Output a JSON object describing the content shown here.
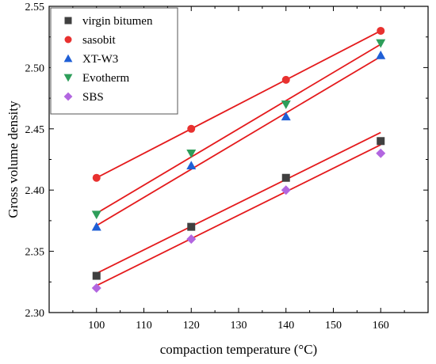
{
  "chart_data": {
    "type": "scatter",
    "title": "",
    "xlabel": "compaction temperature (°C)",
    "ylabel": "Gross volume density",
    "xlim": [
      90,
      170
    ],
    "ylim": [
      2.3,
      2.55
    ],
    "x_ticks": [
      "100",
      "110",
      "120",
      "130",
      "140",
      "150",
      "160"
    ],
    "y_ticks": [
      "2.30",
      "2.35",
      "2.40",
      "2.45",
      "2.50",
      "2.55"
    ],
    "legend_position": "top-left",
    "grid": false,
    "x": [
      100,
      120,
      140,
      160
    ],
    "series": [
      {
        "name": "virgin bitumen",
        "values": [
          2.33,
          2.37,
          2.41,
          2.44
        ],
        "marker": "square",
        "color": "#404040",
        "fit": [
          2.332,
          2.447
        ]
      },
      {
        "name": "sasobit",
        "values": [
          2.41,
          2.45,
          2.49,
          2.53
        ],
        "marker": "circle",
        "color": "#e8312f",
        "fit": [
          2.41,
          2.53
        ]
      },
      {
        "name": "XT-W3",
        "values": [
          2.37,
          2.42,
          2.46,
          2.51
        ],
        "marker": "triangle-up",
        "color": "#1f5fd6",
        "fit": [
          2.371,
          2.509
        ]
      },
      {
        "name": "Evotherm",
        "values": [
          2.38,
          2.43,
          2.47,
          2.52
        ],
        "marker": "triangle-down",
        "color": "#2e9e5a",
        "fit": [
          2.381,
          2.519
        ]
      },
      {
        "name": "SBS",
        "values": [
          2.32,
          2.36,
          2.4,
          2.43
        ],
        "marker": "diamond",
        "color": "#b266e0",
        "fit": [
          2.322,
          2.437
        ]
      }
    ],
    "fit_line_color": "#e41a1c"
  }
}
